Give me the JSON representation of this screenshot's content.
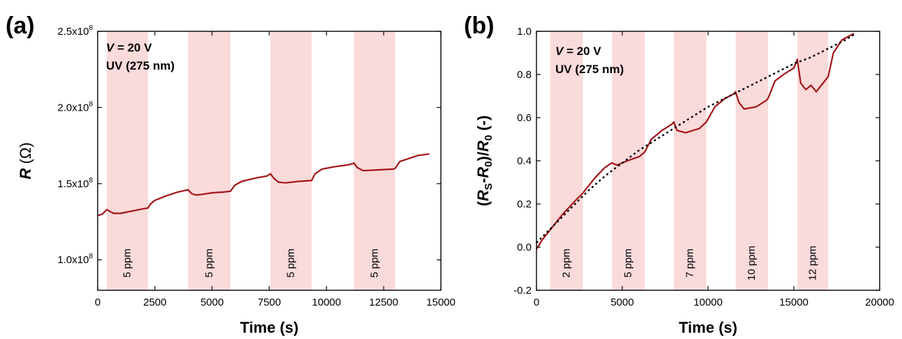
{
  "chart_data": [
    {
      "type": "line",
      "panel_label": "(a)",
      "xlabel": "Time (s)",
      "ylabel_symbol": "R",
      "ylabel_unit": "(Ω)",
      "xlim": [
        0,
        15000
      ],
      "ylim": [
        80000000,
        250000000
      ],
      "x_ticks": [
        0,
        2500,
        5000,
        7500,
        10000,
        12500,
        15000
      ],
      "x_tick_labels": [
        "0",
        "2500",
        "5000",
        "7500",
        "10000",
        "12500",
        "15000"
      ],
      "y_ticks": [
        100000000,
        150000000,
        200000000,
        250000000
      ],
      "y_tick_labels": [
        {
          "base": "1.0x10",
          "exp": "8"
        },
        {
          "base": "1.5x10",
          "exp": "8"
        },
        {
          "base": "2.0x10",
          "exp": "8"
        },
        {
          "base": "2.5x10",
          "exp": "8"
        }
      ],
      "conditions": {
        "line1_var": "V",
        "line1_rest": " = 20 V",
        "line2": "UV (275 nm)"
      },
      "bands": [
        {
          "start": 400,
          "end": 2200,
          "label": "5 ppm"
        },
        {
          "start": 3950,
          "end": 5800,
          "label": "5 ppm"
        },
        {
          "start": 7550,
          "end": 9350,
          "label": "5 ppm"
        },
        {
          "start": 11200,
          "end": 13000,
          "label": "5 ppm"
        }
      ],
      "colors": {
        "band": "#fbdada",
        "series": "#a31418"
      },
      "series": [
        {
          "x": [
            0,
            200,
            400,
            500,
            700,
            1000,
            1500,
            2000,
            2200,
            2300,
            2500,
            3000,
            3500,
            3950,
            4100,
            4300,
            4600,
            5000,
            5500,
            5800,
            6000,
            6300,
            7000,
            7400,
            7550,
            7700,
            7900,
            8200,
            8800,
            9350,
            9500,
            9800,
            10300,
            11000,
            11200,
            11350,
            11600,
            12200,
            12900,
            13000,
            13200,
            13600,
            14000,
            14500
          ],
          "y": [
            129000000,
            130000000,
            133000000,
            132000000,
            130500000,
            130500000,
            132000000,
            133500000,
            134000000,
            136500000,
            139000000,
            142000000,
            144500000,
            146000000,
            143500000,
            142500000,
            143000000,
            144000000,
            144500000,
            145000000,
            149000000,
            151500000,
            154000000,
            155000000,
            156500000,
            153500000,
            151000000,
            150500000,
            151500000,
            152000000,
            156500000,
            159500000,
            161000000,
            162500000,
            163500000,
            160500000,
            158500000,
            159000000,
            159500000,
            160000000,
            164500000,
            166500000,
            168500000,
            169500000
          ]
        }
      ]
    },
    {
      "type": "line",
      "panel_label": "(b)",
      "xlabel": "Time (s)",
      "ylabel_parts": [
        {
          "t": "(",
          "italic": false
        },
        {
          "t": "R",
          "italic": true
        },
        {
          "t": "S",
          "italic": false,
          "sub": true
        },
        {
          "t": "-",
          "italic": false
        },
        {
          "t": "R",
          "italic": true
        },
        {
          "t": "0",
          "italic": false,
          "sub": true
        },
        {
          "t": ")/",
          "italic": false
        },
        {
          "t": "R",
          "italic": true
        },
        {
          "t": "0",
          "italic": false,
          "sub": true
        },
        {
          "t": " (-)",
          "italic": false
        }
      ],
      "xlim": [
        0,
        20000
      ],
      "ylim": [
        -0.2,
        1.0
      ],
      "x_ticks": [
        0,
        5000,
        10000,
        15000,
        20000
      ],
      "x_tick_labels": [
        "0",
        "5000",
        "10000",
        "15000",
        "20000"
      ],
      "y_ticks": [
        -0.2,
        0.0,
        0.2,
        0.4,
        0.6,
        0.8,
        1.0
      ],
      "y_tick_labels": [
        "-0.2",
        "0.0",
        "0.2",
        "0.4",
        "0.6",
        "0.8",
        "1.0"
      ],
      "conditions": {
        "line1_var": "V",
        "line1_rest": " = 20 V",
        "line2": "UV (275 nm)"
      },
      "bands": [
        {
          "start": 800,
          "end": 2700,
          "label": "2 ppm"
        },
        {
          "start": 4400,
          "end": 6300,
          "label": "5 ppm"
        },
        {
          "start": 8000,
          "end": 9900,
          "label": "7 ppm"
        },
        {
          "start": 11600,
          "end": 13500,
          "label": "10 ppm"
        },
        {
          "start": 15200,
          "end": 17000,
          "label": "12 ppm"
        }
      ],
      "colors": {
        "band": "#fbdada",
        "series": "#a31418",
        "fit": "#000000"
      },
      "series": [
        {
          "x": [
            0,
            300,
            800,
            1500,
            2200,
            2700,
            3400,
            4000,
            4400,
            4700,
            5300,
            6000,
            6300,
            6700,
            7300,
            7900,
            8000,
            8200,
            8700,
            9500,
            9900,
            10400,
            11000,
            11500,
            11600,
            11800,
            12100,
            12800,
            13400,
            13500,
            13900,
            14400,
            15000,
            15200,
            15400,
            15700,
            16000,
            16300,
            16700,
            17000,
            17300,
            17800,
            18500
          ],
          "y": [
            -0.01,
            0.03,
            0.08,
            0.15,
            0.21,
            0.25,
            0.32,
            0.37,
            0.39,
            0.38,
            0.4,
            0.42,
            0.44,
            0.5,
            0.54,
            0.57,
            0.58,
            0.54,
            0.53,
            0.55,
            0.58,
            0.65,
            0.69,
            0.71,
            0.72,
            0.67,
            0.64,
            0.65,
            0.68,
            0.69,
            0.77,
            0.8,
            0.83,
            0.87,
            0.76,
            0.73,
            0.75,
            0.72,
            0.76,
            0.79,
            0.9,
            0.96,
            0.99
          ]
        }
      ],
      "fit": {
        "x": [
          0,
          1000,
          2000,
          3000,
          4000,
          5000,
          6000,
          7000,
          8000,
          9000,
          10000,
          11000,
          12000,
          13000,
          14000,
          15000,
          16000,
          17000,
          18000,
          18600
        ],
        "y": [
          0.02,
          0.1,
          0.18,
          0.26,
          0.33,
          0.39,
          0.45,
          0.5,
          0.55,
          0.6,
          0.65,
          0.69,
          0.73,
          0.77,
          0.81,
          0.85,
          0.88,
          0.92,
          0.96,
          0.99
        ]
      }
    }
  ]
}
